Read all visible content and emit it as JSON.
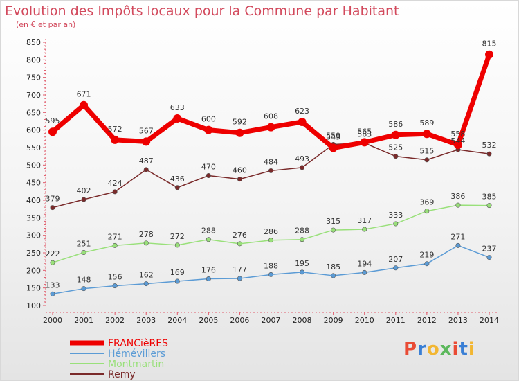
{
  "title": "Evolution des Impôts locaux pour la Commune par Habitant",
  "subtitle": "(en € et par an)",
  "logo": {
    "text": "Proxiti",
    "colors": [
      "#e94b35",
      "#3a7fd5",
      "#f2b632",
      "#5cb85c",
      "#e94b35",
      "#3a7fd5",
      "#f2b632"
    ]
  },
  "chart_data": {
    "type": "line",
    "title": "Evolution des Impôts locaux pour la Commune par Habitant",
    "subtitle": "(en € et par an)",
    "x": [
      "2000",
      "2001",
      "2002",
      "2003",
      "2004",
      "2005",
      "2006",
      "2007",
      "2008",
      "2009",
      "2010",
      "2011",
      "2012",
      "2013",
      "2014"
    ],
    "yticks": [
      100,
      150,
      200,
      250,
      300,
      350,
      400,
      450,
      500,
      550,
      600,
      650,
      700,
      750,
      800,
      850
    ],
    "ylim": [
      100,
      850
    ],
    "grid": false,
    "legend_position": "bottom-left",
    "series": [
      {
        "name": "FRANCièRES",
        "color": "#ee0000",
        "bold": true,
        "values": [
          595,
          671,
          572,
          567,
          633,
          600,
          592,
          608,
          623,
          549,
          565,
          586,
          589,
          558,
          815
        ]
      },
      {
        "name": "Hémévillers",
        "color": "#5b9bd5",
        "values": [
          133,
          148,
          156,
          162,
          169,
          176,
          177,
          188,
          195,
          185,
          194,
          207,
          219,
          271,
          237
        ]
      },
      {
        "name": "Montmartin",
        "color": "#99e07a",
        "values": [
          222,
          251,
          271,
          278,
          272,
          288,
          276,
          286,
          288,
          315,
          317,
          333,
          369,
          386,
          385
        ]
      },
      {
        "name": "Remy",
        "color": "#7a2a2a",
        "values": [
          379,
          402,
          424,
          487,
          436,
          470,
          460,
          484,
          493,
          559,
          563,
          525,
          515,
          544,
          532
        ]
      }
    ]
  }
}
